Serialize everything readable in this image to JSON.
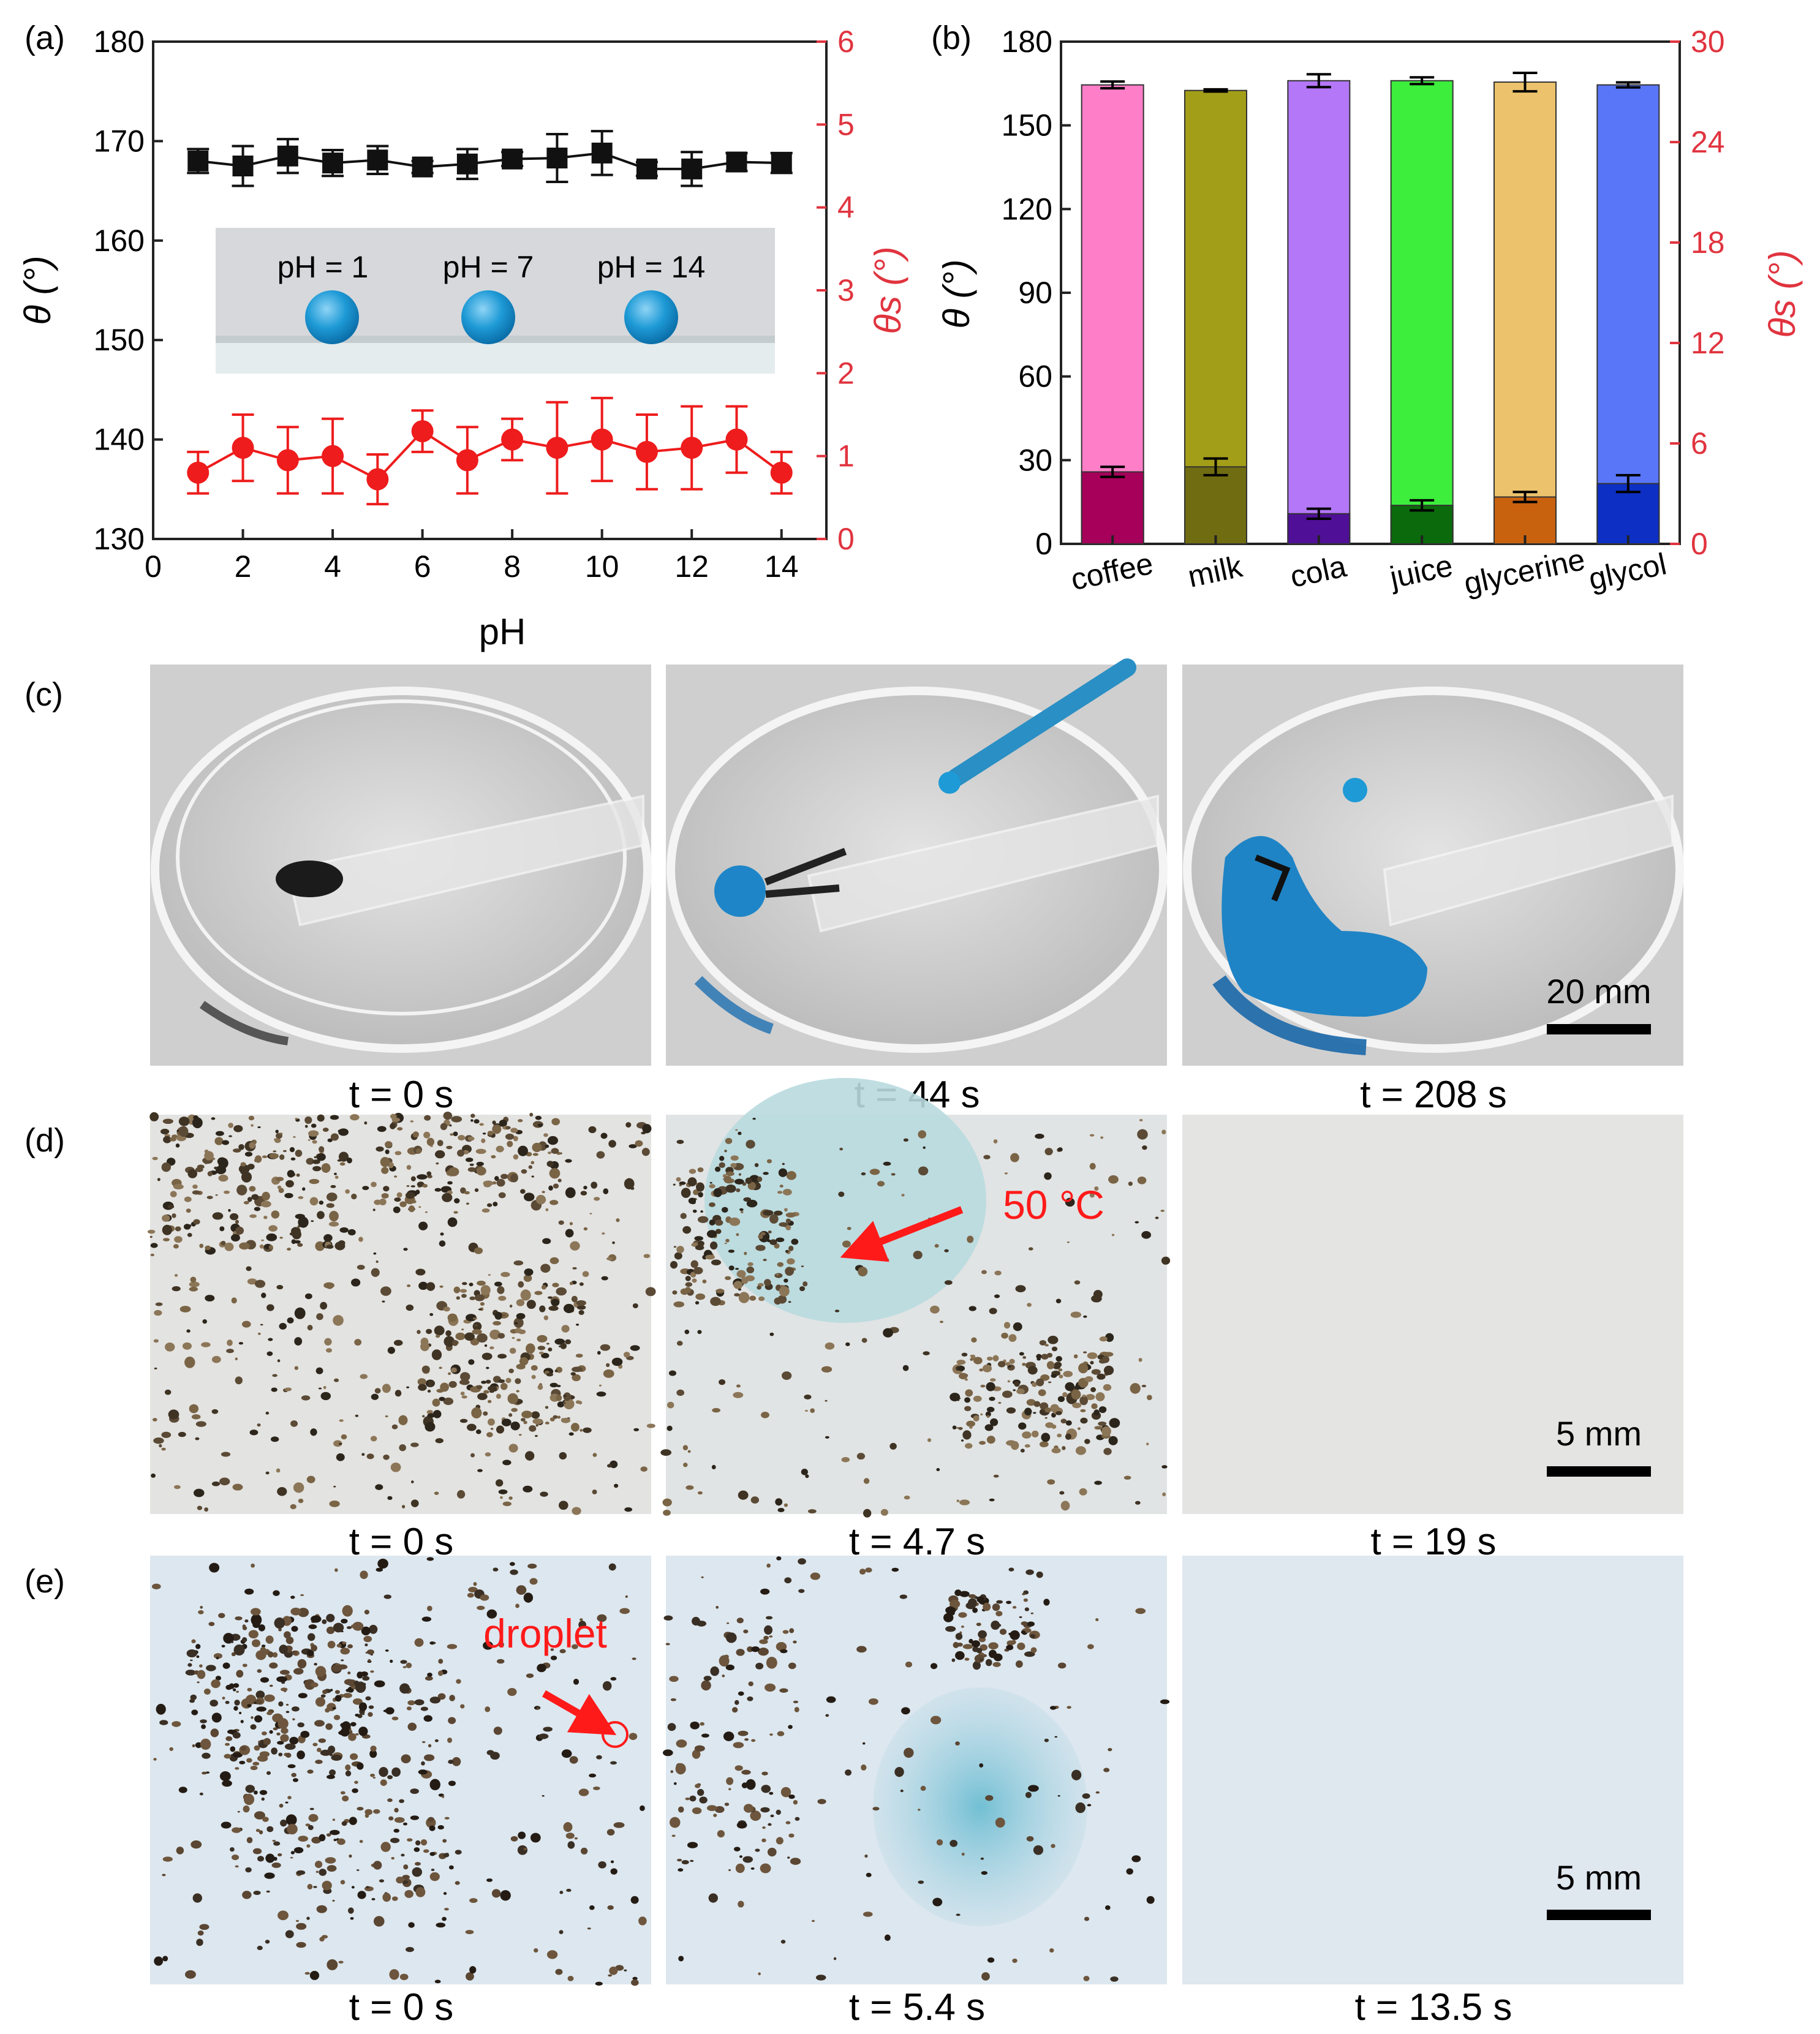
{
  "panels": {
    "a": "(a)",
    "b": "(b)",
    "c": "(c)",
    "d": "(d)",
    "e": "(e)"
  },
  "colors": {
    "black_series": "#111111",
    "red_series": "#ee1c1c",
    "right_axis": "#e0343f",
    "droplet_blue": "#1e9ad6",
    "annotation_red": "#ff1a1a"
  },
  "chart_data": [
    {
      "type": "line",
      "xlabel": "pH",
      "ylabel_left": "θ (°)",
      "ylabel_right": "θs (°)",
      "xlim": [
        0,
        15
      ],
      "ylim_left": [
        130,
        180
      ],
      "ylim_right": [
        0,
        6
      ],
      "x_ticks": [
        "0",
        "2",
        "4",
        "6",
        "8",
        "10",
        "12",
        "14"
      ],
      "y_left_ticks": [
        "130",
        "140",
        "150",
        "160",
        "170",
        "180"
      ],
      "y_right_ticks": [
        "0",
        "1",
        "2",
        "3",
        "4",
        "5",
        "6"
      ],
      "x": [
        1,
        2,
        3,
        4,
        5,
        6,
        7,
        8,
        9,
        10,
        11,
        12,
        13,
        14
      ],
      "series": [
        {
          "axis": "left",
          "marker": "square",
          "values": [
            168.0,
            167.5,
            168.5,
            167.8,
            168.1,
            167.4,
            167.7,
            168.2,
            168.3,
            168.8,
            167.2,
            167.2,
            167.9,
            167.8
          ],
          "errors": [
            1.2,
            2.0,
            1.7,
            1.3,
            1.4,
            0.6,
            1.5,
            0.7,
            2.4,
            2.2,
            0.7,
            1.7,
            0.9,
            1.0
          ]
        },
        {
          "axis": "right",
          "marker": "circle",
          "values": [
            0.8,
            1.1,
            0.95,
            1.0,
            0.72,
            1.3,
            0.95,
            1.2,
            1.1,
            1.2,
            1.05,
            1.1,
            1.2,
            0.8
          ],
          "errors": [
            0.25,
            0.4,
            0.4,
            0.45,
            0.3,
            0.25,
            0.4,
            0.25,
            0.55,
            0.5,
            0.45,
            0.5,
            0.4,
            0.25
          ]
        }
      ],
      "inset_labels": [
        "pH = 1",
        "pH = 7",
        "pH = 14"
      ]
    },
    {
      "type": "bar",
      "categories": [
        "coffee",
        "milk",
        "cola",
        "juice",
        "glycerine",
        "glycol"
      ],
      "ylabel_left": "θ (°)",
      "ylabel_right": "θs (°)",
      "ylim_left": [
        0,
        180
      ],
      "ylim_right": [
        0,
        30
      ],
      "y_left_ticks": [
        "0",
        "30",
        "60",
        "90",
        "120",
        "150",
        "180"
      ],
      "y_right_ticks": [
        "0",
        "6",
        "12",
        "18",
        "24",
        "30"
      ],
      "series": [
        {
          "axis": "left",
          "values": [
            164.5,
            162.5,
            166.0,
            166.0,
            165.5,
            164.5
          ],
          "errors": [
            1.2,
            0.4,
            2.3,
            1.2,
            3.3,
            0.9
          ]
        },
        {
          "axis": "right",
          "values": [
            4.3,
            4.6,
            1.8,
            2.3,
            2.8,
            3.6
          ],
          "errors": [
            0.3,
            0.5,
            0.3,
            0.3,
            0.3,
            0.5
          ]
        }
      ],
      "bar_colors_light": [
        "#ff7ec8",
        "#a39e18",
        "#b377f7",
        "#3dee3d",
        "#ecc36c",
        "#5a76f8"
      ],
      "bar_colors_dark": [
        "#a6005a",
        "#706c12",
        "#4f0f96",
        "#0b6a0b",
        "#c9620f",
        "#0d2fc4"
      ]
    }
  ],
  "row_c": {
    "captions": [
      "t = 0 s",
      "t = 44 s",
      "t = 208 s"
    ],
    "scale_bar": "20 mm"
  },
  "row_d": {
    "captions": [
      "t = 0 s",
      "t = 4.7 s",
      "t = 19 s"
    ],
    "annotation": "50 °C",
    "scale_bar": "5 mm"
  },
  "row_e": {
    "captions": [
      "t = 0 s",
      "t = 5.4 s",
      "t = 13.5 s"
    ],
    "annotation": "droplet",
    "scale_bar": "5 mm"
  }
}
